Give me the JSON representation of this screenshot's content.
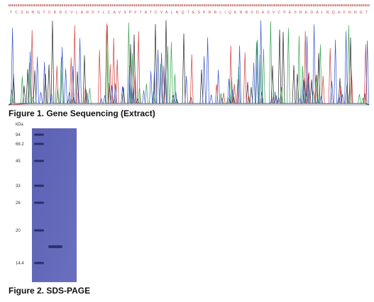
{
  "figure_1": {
    "protein_sequence": "TCSHNGTCRDCVLARDYLCAVSPFTATCVALNQTESPRRLIQENRSDASVCPESREDALRQHFNNGT",
    "caption": "Figure 1. Gene Sequencing (Extract)"
  },
  "figure_2": {
    "unit": "kDa",
    "markers": [
      "94",
      "66.2",
      "45",
      "33",
      "26",
      "20",
      "14.4"
    ],
    "caption": "Figure 2. SDS-PAGE"
  }
}
